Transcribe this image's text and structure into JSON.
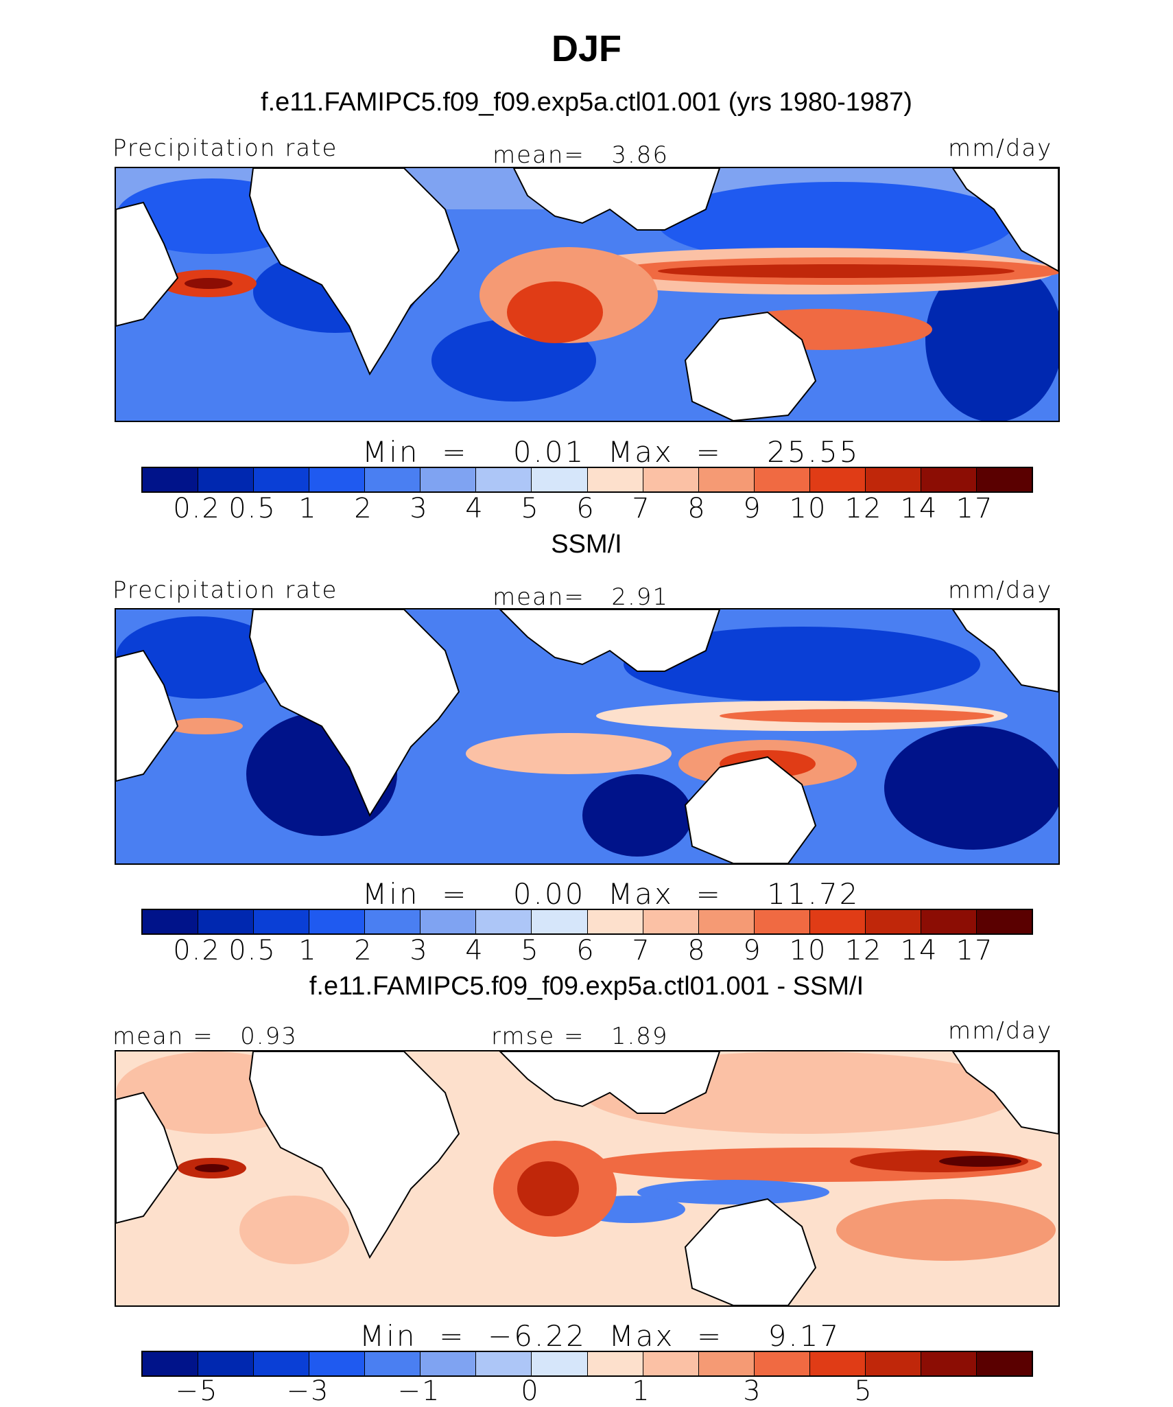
{
  "figure": {
    "title": "DJF"
  },
  "panels": [
    {
      "subtitle": "f.e11.FAMIPC5.f09_f09.exp5a.ctl01.001 (yrs 1980-1987)",
      "left_label": "Precipitation rate",
      "center_label": "mean=   3.86",
      "units": "mm/day",
      "min_max": "Min  =    0.01  Max  =    25.55",
      "colorbar_ticks": [
        "0.2",
        "0.5",
        "1",
        "2",
        "3",
        "4",
        "5",
        "6",
        "7",
        "8",
        "9",
        "10",
        "12",
        "14",
        "17"
      ]
    },
    {
      "subtitle": "SSM/I",
      "left_label": "Precipitation rate",
      "center_label": "mean=   2.91",
      "units": "mm/day",
      "min_max": "Min  =    0.00  Max  =    11.72",
      "colorbar_ticks": [
        "0.2",
        "0.5",
        "1",
        "2",
        "3",
        "4",
        "5",
        "6",
        "7",
        "8",
        "9",
        "10",
        "12",
        "14",
        "17"
      ]
    },
    {
      "subtitle": "f.e11.FAMIPC5.f09_f09.exp5a.ctl01.001 - SSM/I",
      "left_label": "mean =   0.93",
      "center_label": "rmse =   1.89",
      "units": "mm/day",
      "min_max": "Min  =  −6.22  Max  =    9.17",
      "colorbar_ticks": [
        "−5",
        "−3",
        "−1",
        "0",
        "1",
        "3",
        "5"
      ]
    }
  ],
  "palette": [
    "#00138a",
    "#0028b0",
    "#0a3fd6",
    "#1f5af0",
    "#4a7ff2",
    "#7fa3f2",
    "#adc6f7",
    "#d6e6fa",
    "#fde0cc",
    "#fbc1a5",
    "#f59a74",
    "#f06a42",
    "#e03c16",
    "#c0270a",
    "#8c0d04",
    "#5a0000"
  ],
  "chart_data": {
    "type": "heatmap",
    "note": "Three global DJF precipitation maps over 40W-240E; model, SSM/I observations, and difference",
    "panels": [
      {
        "name": "f.e11.FAMIPC5.f09_f09.exp5a.ctl01.001 (yrs 1980-1987)",
        "mean": 3.86,
        "min": 0.01,
        "max": 25.55,
        "units": "mm/day",
        "levels": [
          0.2,
          0.5,
          1,
          2,
          3,
          4,
          5,
          6,
          7,
          8,
          9,
          10,
          12,
          14,
          17
        ]
      },
      {
        "name": "SSM/I",
        "mean": 2.91,
        "min": 0.0,
        "max": 11.72,
        "units": "mm/day",
        "levels": [
          0.2,
          0.5,
          1,
          2,
          3,
          4,
          5,
          6,
          7,
          8,
          9,
          10,
          12,
          14,
          17
        ]
      },
      {
        "name": "f.e11.FAMIPC5.f09_f09.exp5a.ctl01.001 - SSM/I",
        "mean": 0.93,
        "rmse": 1.89,
        "min": -6.22,
        "max": 9.17,
        "units": "mm/day",
        "levels": [
          -5,
          -3,
          -1,
          0,
          1,
          3,
          5
        ]
      }
    ]
  }
}
